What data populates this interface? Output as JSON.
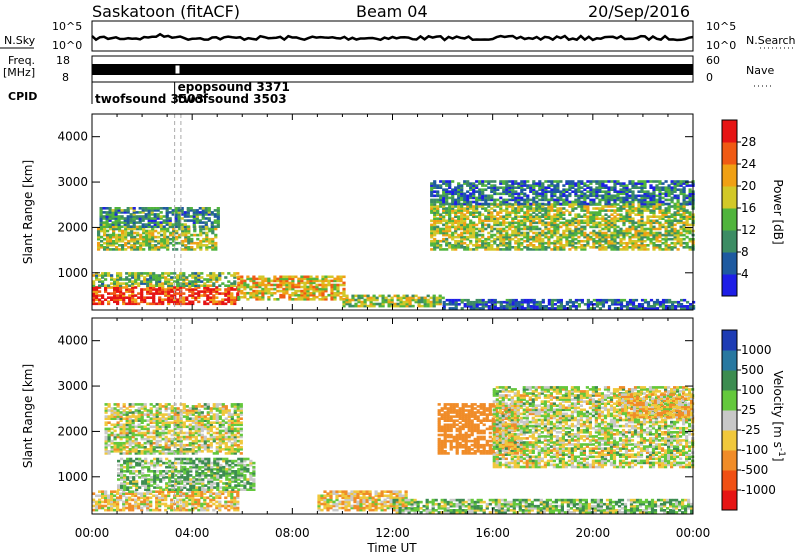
{
  "header": {
    "station": "Saskatoon (fitACF)",
    "beam": "Beam 04",
    "date": "20/Sep/2016"
  },
  "side_labels": {
    "nsky": "N.Sky",
    "freq": "Freq.",
    "freq_unit": "[MHz]",
    "cpid": "CPID",
    "nsearch": "N.Search",
    "nave": "Nave"
  },
  "noise_panel": {
    "left_top": "10^5",
    "left_bottom": "10^0",
    "right_top": "10^5",
    "right_bottom": "10^0"
  },
  "freq_panel": {
    "left_ticks": [
      "18",
      "8"
    ],
    "right_ticks": [
      "60",
      "0"
    ]
  },
  "cpid_labels": [
    {
      "text": "twofsound 3503",
      "time_h": 0.0,
      "row": 1
    },
    {
      "text": "epopsound 3371",
      "time_h": 3.3,
      "row": 0
    },
    {
      "text": "twofsound 3503",
      "time_h": 3.3,
      "row": 1
    }
  ],
  "x_axis": {
    "label": "Time UT",
    "ticks": [
      "00:00",
      "04:00",
      "08:00",
      "12:00",
      "16:00",
      "20:00",
      "00:00"
    ]
  },
  "y_axis": {
    "label": "Slant Range [km]",
    "ticks": [
      "1000",
      "2000",
      "3000",
      "4000"
    ]
  },
  "power_scale": {
    "label": "Power [dB]",
    "ticks": [
      "4",
      "8",
      "12",
      "16",
      "20",
      "24",
      "28"
    ],
    "colors": [
      "#1e1ee6",
      "#1e5aa0",
      "#3c8c64",
      "#50b43c",
      "#d2c828",
      "#f0a014",
      "#f05a14",
      "#e61414"
    ]
  },
  "velocity_scale": {
    "label": "Velocity [m s^-1]",
    "ticks": [
      "1000",
      "500",
      "100",
      "25",
      "-25",
      "-100",
      "-500",
      "-1000"
    ],
    "colors": [
      "#1e3cb4",
      "#2878a0",
      "#3c8c50",
      "#64c83c",
      "#c8c8c8",
      "#f0c83c",
      "#f08c28",
      "#f05014",
      "#e61414"
    ]
  },
  "chart_data": [
    {
      "type": "heatmap",
      "title": "Power",
      "xlabel": "Time UT",
      "ylabel": "Slant Range [km]",
      "xlim": [
        0,
        24
      ],
      "ylim": [
        180,
        4500
      ],
      "colorbar": {
        "label": "Power [dB]",
        "range": [
          0,
          30
        ]
      },
      "echo_regions": [
        {
          "t": [
            0.0,
            5.8
          ],
          "r": [
            300,
            700
          ],
          "value_db": 28
        },
        {
          "t": [
            0.0,
            5.8
          ],
          "r": [
            700,
            1000
          ],
          "value_db": 14
        },
        {
          "t": [
            0.2,
            5.0
          ],
          "r": [
            1500,
            2000
          ],
          "value_db": 16
        },
        {
          "t": [
            0.3,
            5.0
          ],
          "r": [
            2000,
            2450
          ],
          "value_db": 10
        },
        {
          "t": [
            5.8,
            10.0
          ],
          "r": [
            400,
            900
          ],
          "value_db": 20
        },
        {
          "t": [
            10.0,
            14.0
          ],
          "r": [
            250,
            500
          ],
          "value_db": 16
        },
        {
          "t": [
            14.0,
            24.0
          ],
          "r": [
            200,
            400
          ],
          "value_db": 6
        },
        {
          "t": [
            13.5,
            24.0
          ],
          "r": [
            1500,
            2500
          ],
          "value_db": 16
        },
        {
          "t": [
            13.5,
            24.0
          ],
          "r": [
            2500,
            3000
          ],
          "value_db": 8
        }
      ]
    },
    {
      "type": "heatmap",
      "title": "Velocity",
      "xlabel": "Time UT",
      "ylabel": "Slant Range [km]",
      "xlim": [
        0,
        24
      ],
      "ylim": [
        180,
        4500
      ],
      "colorbar": {
        "label": "Velocity [m s^-1]",
        "range": [
          -1000,
          1000
        ]
      },
      "echo_regions": [
        {
          "t": [
            0.0,
            5.8
          ],
          "r": [
            250,
            700
          ],
          "value_ms": -60
        },
        {
          "t": [
            1.0,
            6.5
          ],
          "r": [
            700,
            1400
          ],
          "value_ms": 80
        },
        {
          "t": [
            0.5,
            6.0
          ],
          "r": [
            1500,
            2600
          ],
          "value_ms": 0
        },
        {
          "t": [
            9.0,
            12.5
          ],
          "r": [
            250,
            700
          ],
          "value_ms": -80
        },
        {
          "t": [
            12.0,
            24.0
          ],
          "r": [
            200,
            500
          ],
          "value_ms": 60
        },
        {
          "t": [
            13.8,
            17.0
          ],
          "r": [
            1500,
            2600
          ],
          "value_ms": -300
        },
        {
          "t": [
            16.0,
            24.0
          ],
          "r": [
            1200,
            3000
          ],
          "value_ms": 0
        },
        {
          "t": [
            21.0,
            24.0
          ],
          "r": [
            2300,
            2800
          ],
          "value_ms": -80
        }
      ]
    }
  ]
}
